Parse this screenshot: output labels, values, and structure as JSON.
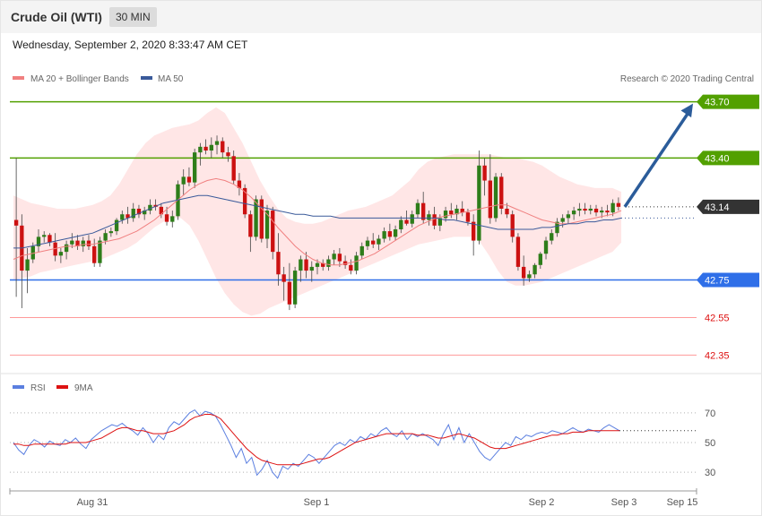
{
  "header": {
    "title": "Crude Oil (WTI)",
    "timeframe": "30 MIN"
  },
  "timestamp": "Wednesday, September 2, 2020 8:33:47 AM CET",
  "credit": "Research © 2020 Trading Central",
  "colors": {
    "support": "#2f6fe8",
    "resistance": "#52a000",
    "secondary_support": "#ff9a9a",
    "up_candle": "#2e7d1a",
    "down_candle": "#cc1111",
    "band_fill": "#ffe3e3",
    "ma20": "#f08080",
    "ma50": "#3a5a9a",
    "arrow": "#2b5c9a",
    "rsi": "#5b7fe0",
    "rsi_ma": "#dd1111"
  },
  "chart_data": [
    {
      "type": "candlestick",
      "legend": [
        {
          "name": "MA 20 + Bollinger Bands",
          "color": "#f08080"
        },
        {
          "name": "MA 50",
          "color": "#3a5a9a"
        }
      ],
      "ylim": [
        42.28,
        43.76
      ],
      "x_labels": [
        "Aug 31",
        "Sep 1",
        "Sep 2",
        "Sep 3",
        "Sep 15"
      ],
      "current_price": "43.14",
      "levels": [
        {
          "label": "43.70",
          "value": 43.7,
          "type": "resistance"
        },
        {
          "label": "43.40",
          "value": 43.4,
          "type": "resistance"
        },
        {
          "label": "42.75",
          "value": 42.75,
          "type": "support"
        },
        {
          "label": "42.55",
          "value": 42.55,
          "type": "support2"
        },
        {
          "label": "42.35",
          "value": 42.35,
          "type": "support2"
        }
      ],
      "ohlc": [
        [
          43.07,
          43.4,
          42.66,
          43.04
        ],
        [
          43.04,
          43.1,
          42.6,
          42.8
        ],
        [
          42.8,
          42.92,
          42.68,
          42.86
        ],
        [
          42.86,
          42.95,
          42.84,
          42.93
        ],
        [
          42.93,
          43.02,
          42.9,
          42.98
        ],
        [
          42.98,
          43.01,
          42.95,
          42.99
        ],
        [
          42.99,
          43.0,
          42.93,
          42.95
        ],
        [
          42.95,
          43.0,
          42.85,
          42.88
        ],
        [
          42.88,
          42.92,
          42.84,
          42.9
        ],
        [
          42.9,
          42.96,
          42.86,
          42.94
        ],
        [
          42.94,
          43.0,
          42.92,
          42.96
        ],
        [
          42.96,
          42.99,
          42.91,
          42.93
        ],
        [
          42.93,
          42.98,
          42.9,
          42.96
        ],
        [
          42.96,
          42.99,
          42.91,
          42.93
        ],
        [
          42.93,
          42.97,
          42.82,
          42.84
        ],
        [
          42.84,
          42.98,
          42.82,
          42.96
        ],
        [
          42.96,
          43.02,
          42.94,
          43.0
        ],
        [
          43.0,
          43.03,
          42.98,
          43.01
        ],
        [
          43.01,
          43.08,
          42.99,
          43.07
        ],
        [
          43.07,
          43.12,
          43.05,
          43.1
        ],
        [
          43.1,
          43.14,
          43.05,
          43.08
        ],
        [
          43.08,
          43.16,
          43.06,
          43.13
        ],
        [
          43.13,
          43.15,
          43.08,
          43.1
        ],
        [
          43.1,
          43.14,
          43.07,
          43.12
        ],
        [
          43.12,
          43.18,
          43.1,
          43.15
        ],
        [
          43.15,
          43.18,
          43.12,
          43.14
        ],
        [
          43.14,
          43.16,
          43.08,
          43.1
        ],
        [
          43.1,
          43.14,
          43.04,
          43.06
        ],
        [
          43.06,
          43.12,
          43.03,
          43.09
        ],
        [
          43.09,
          43.28,
          43.07,
          43.26
        ],
        [
          43.26,
          43.34,
          43.2,
          43.3
        ],
        [
          43.3,
          43.35,
          43.25,
          43.27
        ],
        [
          43.27,
          43.45,
          43.24,
          43.43
        ],
        [
          43.43,
          43.48,
          43.36,
          43.46
        ],
        [
          43.46,
          43.5,
          43.42,
          43.44
        ],
        [
          43.44,
          43.51,
          43.4,
          43.47
        ],
        [
          43.47,
          43.52,
          43.42,
          43.49
        ],
        [
          43.49,
          43.51,
          43.4,
          43.43
        ],
        [
          43.43,
          43.46,
          43.38,
          43.41
        ],
        [
          43.41,
          43.44,
          43.26,
          43.28
        ],
        [
          43.28,
          43.32,
          43.2,
          43.24
        ],
        [
          43.24,
          43.26,
          43.08,
          43.1
        ],
        [
          43.1,
          43.12,
          42.9,
          42.98
        ],
        [
          42.98,
          43.2,
          42.96,
          43.18
        ],
        [
          43.18,
          43.2,
          42.95,
          42.97
        ],
        [
          42.97,
          43.15,
          42.92,
          43.12
        ],
        [
          43.12,
          43.14,
          42.86,
          42.9
        ],
        [
          42.9,
          43.0,
          42.72,
          42.78
        ],
        [
          42.78,
          42.82,
          42.64,
          42.74
        ],
        [
          42.74,
          42.84,
          42.59,
          42.62
        ],
        [
          42.62,
          42.82,
          42.6,
          42.8
        ],
        [
          42.8,
          42.88,
          42.74,
          42.86
        ],
        [
          42.86,
          42.9,
          42.76,
          42.8
        ],
        [
          42.8,
          42.85,
          42.74,
          42.82
        ],
        [
          42.82,
          42.86,
          42.78,
          42.84
        ],
        [
          42.84,
          42.86,
          42.8,
          42.82
        ],
        [
          42.82,
          42.88,
          42.8,
          42.86
        ],
        [
          42.86,
          42.91,
          42.83,
          42.89
        ],
        [
          42.89,
          42.92,
          42.82,
          42.85
        ],
        [
          42.85,
          42.88,
          42.81,
          42.83
        ],
        [
          42.83,
          42.86,
          42.78,
          42.8
        ],
        [
          42.8,
          42.9,
          42.78,
          42.88
        ],
        [
          42.88,
          42.95,
          42.86,
          42.93
        ],
        [
          42.93,
          42.98,
          42.91,
          42.96
        ],
        [
          42.96,
          43.0,
          42.92,
          42.94
        ],
        [
          42.94,
          42.99,
          42.91,
          42.97
        ],
        [
          42.97,
          43.03,
          42.95,
          43.01
        ],
        [
          43.01,
          43.05,
          42.96,
          42.98
        ],
        [
          42.98,
          43.04,
          42.96,
          43.02
        ],
        [
          43.02,
          43.09,
          43.0,
          43.07
        ],
        [
          43.07,
          43.12,
          43.04,
          43.05
        ],
        [
          43.05,
          43.12,
          43.03,
          43.1
        ],
        [
          43.1,
          43.18,
          43.08,
          43.16
        ],
        [
          43.16,
          43.22,
          43.05,
          43.07
        ],
        [
          43.07,
          43.12,
          43.04,
          43.1
        ],
        [
          43.1,
          43.14,
          43.02,
          43.04
        ],
        [
          43.04,
          43.1,
          43.01,
          43.08
        ],
        [
          43.08,
          43.14,
          43.06,
          43.12
        ],
        [
          43.12,
          43.16,
          43.08,
          43.1
        ],
        [
          43.1,
          43.15,
          43.07,
          43.13
        ],
        [
          43.13,
          43.17,
          43.09,
          43.11
        ],
        [
          43.11,
          43.13,
          43.04,
          43.06
        ],
        [
          43.06,
          43.1,
          42.88,
          42.96
        ],
        [
          42.96,
          43.44,
          42.94,
          43.36
        ],
        [
          43.36,
          43.4,
          43.2,
          43.28
        ],
        [
          43.28,
          43.42,
          43.05,
          43.08
        ],
        [
          43.08,
          43.32,
          43.06,
          43.3
        ],
        [
          43.3,
          43.32,
          43.1,
          43.13
        ],
        [
          43.13,
          43.16,
          43.08,
          43.1
        ],
        [
          43.1,
          43.12,
          42.95,
          42.98
        ],
        [
          42.98,
          43.0,
          42.8,
          42.82
        ],
        [
          42.82,
          42.88,
          42.72,
          42.76
        ],
        [
          42.76,
          42.8,
          42.74,
          42.78
        ],
        [
          42.78,
          42.84,
          42.76,
          42.83
        ],
        [
          42.83,
          42.9,
          42.81,
          42.89
        ],
        [
          42.89,
          42.98,
          42.86,
          42.96
        ],
        [
          42.96,
          43.02,
          42.94,
          43.0
        ],
        [
          43.0,
          43.08,
          42.98,
          43.06
        ],
        [
          43.06,
          43.1,
          43.03,
          43.08
        ],
        [
          43.08,
          43.12,
          43.05,
          43.1
        ],
        [
          43.1,
          43.14,
          43.07,
          43.12
        ],
        [
          43.12,
          43.16,
          43.09,
          43.13
        ],
        [
          43.13,
          43.16,
          43.1,
          43.12
        ],
        [
          43.12,
          43.15,
          43.1,
          43.13
        ],
        [
          43.13,
          43.15,
          43.09,
          43.11
        ],
        [
          43.11,
          43.14,
          43.08,
          43.12
        ],
        [
          43.12,
          43.15,
          43.09,
          43.11
        ],
        [
          43.11,
          43.18,
          43.09,
          43.16
        ],
        [
          43.16,
          43.19,
          43.12,
          43.14
        ]
      ],
      "ma20": [
        42.86,
        42.88,
        42.89,
        42.9,
        42.91,
        42.92,
        42.93,
        42.93,
        42.94,
        42.94,
        42.95,
        42.96,
        42.97,
        42.99,
        43.01,
        43.04,
        43.07,
        43.11,
        43.15,
        43.19,
        43.23,
        43.26,
        43.28,
        43.29,
        43.28,
        43.26,
        43.23,
        43.19,
        43.14,
        43.09,
        43.03,
        42.98,
        42.93,
        42.89,
        42.86,
        42.84,
        42.83,
        42.83,
        42.84,
        42.85,
        42.87,
        42.89,
        42.92,
        42.95,
        42.98,
        43.01,
        43.04,
        43.06,
        43.08,
        43.09,
        43.1,
        43.11,
        43.12,
        43.13,
        43.14,
        43.15,
        43.15,
        43.13,
        43.11,
        43.09,
        43.07,
        43.06,
        43.05,
        43.05,
        43.06,
        43.07,
        43.08,
        43.09,
        43.1,
        43.12
      ],
      "bb_upper": [
        43.2,
        43.18,
        43.16,
        43.15,
        43.14,
        43.13,
        43.13,
        43.13,
        43.14,
        43.15,
        43.17,
        43.2,
        43.26,
        43.34,
        43.42,
        43.48,
        43.52,
        43.54,
        43.56,
        43.57,
        43.58,
        43.6,
        43.64,
        43.67,
        43.64,
        43.56,
        43.48,
        43.38,
        43.28,
        43.2,
        43.13,
        43.08,
        43.06,
        43.05,
        43.05,
        43.06,
        43.08,
        43.1,
        43.12,
        43.13,
        43.14,
        43.16,
        43.18,
        43.2,
        43.24,
        43.28,
        43.34,
        43.38,
        43.4,
        43.41,
        43.42,
        43.42,
        43.42,
        43.42,
        43.42,
        43.41,
        43.4,
        43.4,
        43.39,
        43.38,
        43.36,
        43.33,
        43.3,
        43.28,
        43.26,
        43.25,
        43.24,
        43.24,
        43.24,
        43.22
      ],
      "bb_lower": [
        42.75,
        42.76,
        42.77,
        42.79,
        42.8,
        42.81,
        42.82,
        42.83,
        42.84,
        42.85,
        42.86,
        42.88,
        42.9,
        42.92,
        42.95,
        42.99,
        43.03,
        43.06,
        43.08,
        43.08,
        43.04,
        42.96,
        42.86,
        42.76,
        42.68,
        42.62,
        42.58,
        42.56,
        42.57,
        42.6,
        42.62,
        42.64,
        42.66,
        42.68,
        42.7,
        42.72,
        42.74,
        42.76,
        42.78,
        42.8,
        42.82,
        42.84,
        42.86,
        42.88,
        42.9,
        42.92,
        42.94,
        42.95,
        42.96,
        42.97,
        42.98,
        42.98,
        42.98,
        42.95,
        42.88,
        42.8,
        42.74,
        42.72,
        42.72,
        42.73,
        42.74,
        42.76,
        42.78,
        42.8,
        42.82,
        42.84,
        42.86,
        42.88,
        42.9,
        42.95
      ],
      "ma50": [
        42.92,
        42.92,
        42.93,
        42.94,
        42.95,
        42.96,
        42.97,
        42.98,
        42.99,
        43.0,
        43.02,
        43.04,
        43.06,
        43.08,
        43.1,
        43.12,
        43.14,
        43.16,
        43.17,
        43.18,
        43.19,
        43.2,
        43.2,
        43.19,
        43.18,
        43.17,
        43.16,
        43.15,
        43.14,
        43.13,
        43.12,
        43.11,
        43.1,
        43.1,
        43.09,
        43.09,
        43.09,
        43.08,
        43.08,
        43.08,
        43.08,
        43.08,
        43.08,
        43.08,
        43.08,
        43.08,
        43.08,
        43.08,
        43.08,
        43.07,
        43.07,
        43.06,
        43.05,
        43.04,
        43.03,
        43.02,
        43.02,
        43.02,
        43.02,
        43.02,
        43.03,
        43.03,
        43.04,
        43.05,
        43.05,
        43.06,
        43.06,
        43.07,
        43.07,
        43.08
      ],
      "forecast": {
        "from": 43.14,
        "to": 43.7
      }
    },
    {
      "type": "line",
      "legend": [
        {
          "name": "RSI",
          "color": "#5b7fe0"
        },
        {
          "name": "9MA",
          "color": "#dd1111"
        }
      ],
      "ylim": [
        18,
        82
      ],
      "y_ticks": [
        "70",
        "50",
        "30"
      ],
      "series": [
        {
          "name": "RSI",
          "values": [
            50,
            45,
            42,
            48,
            52,
            50,
            47,
            51,
            49,
            48,
            52,
            50,
            53,
            49,
            46,
            52,
            55,
            58,
            60,
            62,
            61,
            63,
            60,
            58,
            55,
            60,
            56,
            50,
            55,
            52,
            60,
            64,
            62,
            66,
            70,
            72,
            68,
            71,
            70,
            68,
            62,
            55,
            48,
            40,
            46,
            36,
            40,
            28,
            32,
            38,
            30,
            26,
            34,
            32,
            36,
            34,
            38,
            42,
            40,
            36,
            40,
            44,
            48,
            50,
            48,
            52,
            50,
            54,
            52,
            56,
            54,
            58,
            60,
            56,
            54,
            58,
            52,
            56,
            54,
            56,
            54,
            52,
            48,
            56,
            62,
            52,
            60,
            50,
            56,
            50,
            44,
            40,
            38,
            42,
            46,
            50,
            48,
            54,
            52,
            55,
            54,
            56,
            57,
            56,
            58,
            57,
            56,
            58,
            60,
            58,
            57,
            59,
            58,
            57,
            60,
            62,
            60,
            58
          ]
        },
        {
          "name": "9MA",
          "values": [
            49,
            49,
            48,
            48,
            49,
            49,
            49,
            49,
            49,
            49,
            49,
            50,
            50,
            50,
            50,
            51,
            52,
            53,
            55,
            57,
            59,
            60,
            60,
            59,
            58,
            58,
            57,
            56,
            56,
            56,
            57,
            58,
            60,
            62,
            65,
            67,
            68,
            69,
            69,
            68,
            66,
            62,
            58,
            54,
            50,
            46,
            43,
            40,
            38,
            37,
            36,
            35,
            35,
            35,
            35,
            35,
            36,
            37,
            38,
            39,
            39,
            40,
            42,
            44,
            46,
            48,
            50,
            51,
            52,
            53,
            54,
            55,
            56,
            56,
            56,
            56,
            56,
            56,
            55,
            55,
            55,
            54,
            53,
            53,
            54,
            55,
            56,
            55,
            54,
            53,
            51,
            49,
            47,
            46,
            46,
            46,
            47,
            48,
            49,
            50,
            51,
            52,
            53,
            54,
            55,
            55,
            56,
            56,
            57,
            57,
            57,
            58,
            58,
            58,
            58,
            58,
            58,
            58
          ]
        }
      ]
    }
  ]
}
